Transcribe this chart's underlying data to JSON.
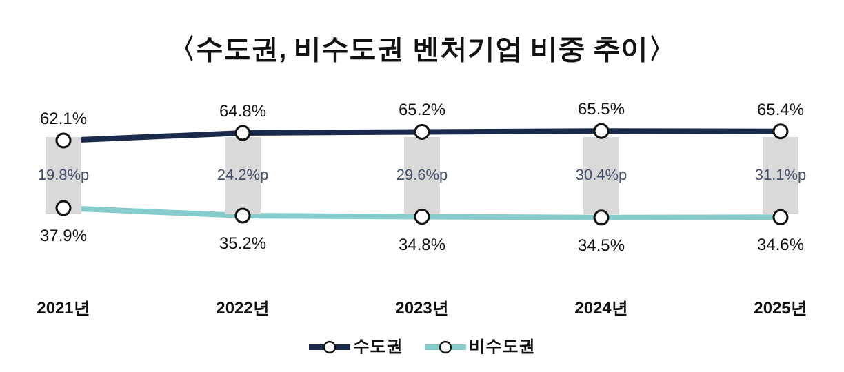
{
  "chart_data": {
    "type": "line",
    "title": "〈수도권, 비수도권 벤처기업 비중 추이〉",
    "categories": [
      "2021년",
      "2022년",
      "2023년",
      "2024년",
      "2025년"
    ],
    "series": [
      {
        "name": "수도권",
        "color": "#1b2a4a",
        "values": [
          62.1,
          64.8,
          65.2,
          65.5,
          65.4
        ],
        "value_labels": [
          "62.1%",
          "64.8%",
          "65.2%",
          "65.5%",
          "65.4%"
        ]
      },
      {
        "name": "비수도권",
        "color": "#86cccc",
        "values": [
          37.9,
          35.2,
          34.8,
          34.5,
          34.6
        ],
        "value_labels": [
          "37.9%",
          "35.2%",
          "34.8%",
          "34.5%",
          "34.6%"
        ]
      }
    ],
    "annotations": [
      "19.8%p",
      "24.2%p",
      "29.6%p",
      "30.4%p",
      "31.1%p"
    ],
    "marker": "circle",
    "legend": "bottom",
    "grid": false
  }
}
